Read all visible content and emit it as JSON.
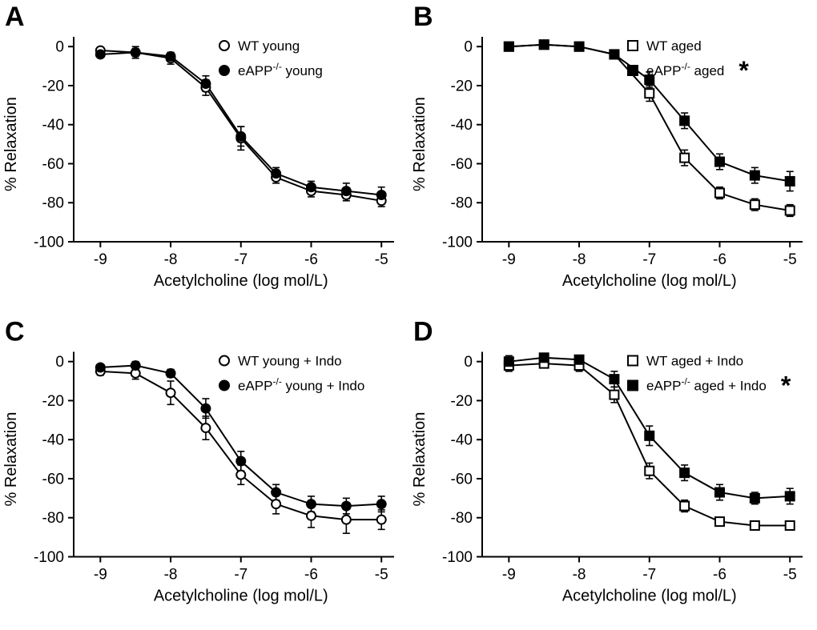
{
  "figure": {
    "background": "#ffffff",
    "ink": "#000000",
    "panels": [
      "A",
      "B",
      "C",
      "D"
    ]
  },
  "chart_data": [
    {
      "type": "line",
      "panel": "A",
      "marker": "circle",
      "xlabel": "Acetylcholine (log mol/L)",
      "ylabel": "% Relaxation",
      "x": [
        -9,
        -8.5,
        -8,
        -7.5,
        -7,
        -6.5,
        -6,
        -5.5,
        -5
      ],
      "x_ticks": [
        -9,
        -8,
        -7,
        -6,
        -5
      ],
      "y_ticks": [
        0,
        -20,
        -40,
        -60,
        -80,
        -100
      ],
      "xlim": [
        -9.38,
        -4.82
      ],
      "ylim": [
        -100,
        5
      ],
      "grid": false,
      "legend_position": "top-right-inside",
      "significance": "",
      "series": [
        {
          "name": "WT young",
          "label_pre": "WT young",
          "label_sup": "",
          "label_post": "",
          "fill": "open",
          "values": [
            -2,
            -3,
            -6,
            -21,
            -47,
            -67,
            -74,
            -76,
            -79
          ],
          "errors": [
            1,
            3,
            3,
            4,
            6,
            3,
            3,
            3,
            3
          ]
        },
        {
          "name": "eAPP-/- young",
          "label_pre": "eAPP",
          "label_sup": "-/-",
          "label_post": " young",
          "fill": "filled",
          "values": [
            -4,
            -3,
            -5,
            -19,
            -46,
            -65,
            -72,
            -74,
            -76
          ],
          "errors": [
            1,
            2,
            2,
            4,
            5,
            3,
            3,
            4,
            4
          ]
        }
      ]
    },
    {
      "type": "line",
      "panel": "B",
      "marker": "square",
      "xlabel": "Acetylcholine (log mol/L)",
      "ylabel": "% Relaxation",
      "x": [
        -9,
        -8.5,
        -8,
        -7.5,
        -7,
        -6.5,
        -6,
        -5.5,
        -5
      ],
      "x_ticks": [
        -9,
        -8,
        -7,
        -6,
        -5
      ],
      "y_ticks": [
        0,
        -20,
        -40,
        -60,
        -80,
        -100
      ],
      "xlim": [
        -9.38,
        -4.82
      ],
      "ylim": [
        -100,
        5
      ],
      "grid": false,
      "legend_position": "top-right-inside",
      "significance": "*",
      "series": [
        {
          "name": "WT aged",
          "label_pre": "WT aged",
          "label_sup": "",
          "label_post": "",
          "fill": "open",
          "values": [
            0,
            1,
            0,
            -4,
            -24,
            -57,
            -75,
            -81,
            -84
          ],
          "errors": [
            2,
            2,
            2,
            2,
            4,
            4,
            3,
            3,
            3
          ]
        },
        {
          "name": "eAPP-/- aged",
          "label_pre": "eAPP",
          "label_sup": "-/-",
          "label_post": " aged",
          "fill": "filled",
          "values": [
            0,
            1,
            0,
            -4,
            -17,
            -38,
            -59,
            -66,
            -69
          ],
          "errors": [
            2,
            2,
            2,
            2,
            4,
            4,
            4,
            4,
            5
          ]
        }
      ]
    },
    {
      "type": "line",
      "panel": "C",
      "marker": "circle",
      "xlabel": "Acetylcholine (log mol/L)",
      "ylabel": "% Relaxation",
      "x": [
        -9,
        -8.5,
        -8,
        -7.5,
        -7,
        -6.5,
        -6,
        -5.5,
        -5
      ],
      "x_ticks": [
        -9,
        -8,
        -7,
        -6,
        -5
      ],
      "y_ticks": [
        0,
        -20,
        -40,
        -60,
        -80,
        -100
      ],
      "xlim": [
        -9.38,
        -4.82
      ],
      "ylim": [
        -100,
        5
      ],
      "grid": false,
      "legend_position": "top-right-inside",
      "significance": "",
      "series": [
        {
          "name": "WT young + Indo",
          "label_pre": "WT young +  Indo",
          "label_sup": "",
          "label_post": "",
          "fill": "open",
          "values": [
            -5,
            -6,
            -16,
            -34,
            -58,
            -73,
            -79,
            -81,
            -81
          ],
          "errors": [
            2,
            3,
            6,
            6,
            5,
            5,
            6,
            7,
            5
          ]
        },
        {
          "name": "eAPP-/- young + Indo",
          "label_pre": "eAPP",
          "label_sup": "-/-",
          "label_post": " young + Indo",
          "fill": "filled",
          "values": [
            -3,
            -2,
            -6,
            -24,
            -51,
            -67,
            -73,
            -74,
            -73
          ],
          "errors": [
            1,
            2,
            2,
            5,
            5,
            4,
            4,
            4,
            4
          ]
        }
      ]
    },
    {
      "type": "line",
      "panel": "D",
      "marker": "square",
      "xlabel": "Acetylcholine (log mol/L)",
      "ylabel": "% Relaxation",
      "x": [
        -9,
        -8.5,
        -8,
        -7.5,
        -7,
        -6.5,
        -6,
        -5.5,
        -5
      ],
      "x_ticks": [
        -9,
        -8,
        -7,
        -6,
        -5
      ],
      "y_ticks": [
        0,
        -20,
        -40,
        -60,
        -80,
        -100
      ],
      "xlim": [
        -9.38,
        -4.82
      ],
      "ylim": [
        -100,
        5
      ],
      "grid": false,
      "legend_position": "top-right-inside",
      "significance": "*",
      "series": [
        {
          "name": "WT aged + Indo",
          "label_pre": "WT aged + Indo",
          "label_sup": "",
          "label_post": "",
          "fill": "open",
          "values": [
            -2,
            -1,
            -2,
            -17,
            -56,
            -74,
            -82,
            -84,
            -84
          ],
          "errors": [
            3,
            2,
            3,
            4,
            4,
            3,
            2,
            2,
            2
          ]
        },
        {
          "name": "eAPP-/- aged + Indo",
          "label_pre": "eAPP",
          "label_sup": "-/-",
          "label_post": " aged + Indo",
          "fill": "filled",
          "values": [
            0,
            2,
            1,
            -9,
            -38,
            -57,
            -67,
            -70,
            -69
          ],
          "errors": [
            3,
            2,
            2,
            4,
            5,
            4,
            4,
            3,
            4
          ]
        }
      ]
    }
  ]
}
